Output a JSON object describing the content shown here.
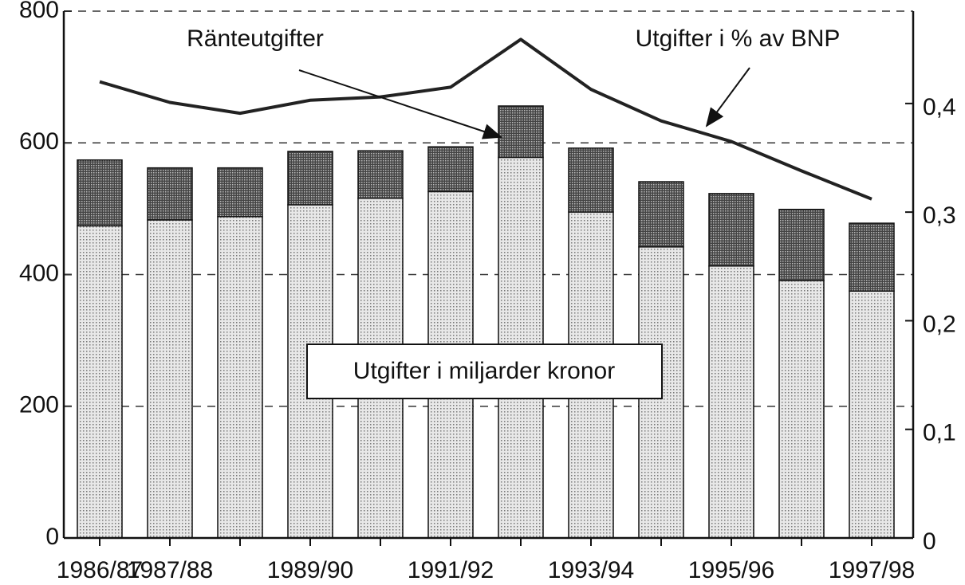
{
  "chart_data": {
    "type": "bar",
    "stacked": true,
    "annotation": "Utgifter i miljarder kronor",
    "categories": [
      "1986/87",
      "1987/88",
      null,
      "1989/90",
      null,
      "1991/92",
      null,
      "1993/94",
      null,
      "1995/96",
      null,
      "1997/98"
    ],
    "series": [
      {
        "color": "#e8e8e8",
        "values": [
          474,
          483,
          488,
          506,
          516,
          526,
          578,
          495,
          442,
          413,
          391,
          375
        ]
      },
      {
        "name": "Ränteutgifter",
        "color": "#444444",
        "values": [
          100,
          79,
          74,
          81,
          72,
          68,
          78,
          97,
          99,
          110,
          108,
          103
        ]
      },
      {
        "name": "Utgifter i % av BNP",
        "color": "#222222",
        "axis": "y2",
        "type": "line",
        "values": [
          0.42,
          0.401,
          0.391,
          0.403,
          0.406,
          0.415,
          0.459,
          0.413,
          0.384,
          0.365,
          0.338,
          0.312
        ]
      }
    ],
    "ylim": [
      0,
      800
    ],
    "yticks": [
      0,
      200,
      400,
      600,
      800
    ],
    "y2lim": [
      0,
      0.485
    ],
    "y2ticks": [
      0,
      {
        "value": 0.1,
        "label": "0,1"
      },
      {
        "value": 0.2,
        "label": "0,2"
      },
      {
        "value": 0.3,
        "label": "0,3"
      },
      {
        "value": 0.4,
        "label": "0,4"
      }
    ],
    "grid": true
  }
}
